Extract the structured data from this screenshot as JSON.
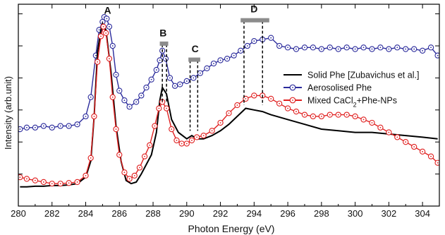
{
  "chart_data": {
    "type": "line",
    "xlabel": "Photon Energy (eV)",
    "ylabel": "Intensity (arb.unit)",
    "xlim": [
      280,
      305
    ],
    "ylim": [
      0,
      6.3
    ],
    "x_ticks": [
      "280",
      "282",
      "284",
      "286",
      "288",
      "290",
      "292",
      "294",
      "296",
      "298",
      "300",
      "302",
      "304"
    ],
    "x_tick_values": [
      280,
      282,
      284,
      286,
      288,
      290,
      292,
      294,
      296,
      298,
      300,
      302,
      304
    ],
    "y_tick_labels_shown": false,
    "legend_position": "right",
    "legend": {
      "items": [
        {
          "label": "Solid Phe [Zubavichus et al.]",
          "label_sub": "",
          "label_tail": "",
          "marker": "line",
          "color": "#000000"
        },
        {
          "label": "Aerosolised Phe",
          "label_sub": "",
          "label_tail": "",
          "marker": "circle",
          "color": "#2b2b9c"
        },
        {
          "label": "Mixed CaCl",
          "label_sub": "2",
          "label_tail": "+Phe-NPs",
          "marker": "circle",
          "color": "#e02020"
        }
      ]
    },
    "peak_labels": [
      {
        "label": "A",
        "x": 285.3,
        "y": 6.0
      },
      {
        "label": "B",
        "x": 288.6,
        "y": 5.3
      },
      {
        "label": "C",
        "x": 290.5,
        "y": 4.8
      },
      {
        "label": "D",
        "x": 294.0,
        "y": 6.05
      }
    ],
    "markers": {
      "dashed_lines": [
        {
          "x": 288.55,
          "y_top": 5.05,
          "y_bottom": 3.25
        },
        {
          "x": 288.8,
          "y_top": 5.05,
          "y_bottom": 3.25
        },
        {
          "x": 290.2,
          "y_top": 4.55,
          "y_bottom": 2.35
        },
        {
          "x": 290.65,
          "y_top": 4.55,
          "y_bottom": 2.35
        },
        {
          "x": 293.4,
          "y_top": 5.78,
          "y_bottom": 3.15
        },
        {
          "x": 294.5,
          "y_top": 5.78,
          "y_bottom": 3.15
        }
      ],
      "bars": [
        {
          "x1": 288.4,
          "x2": 288.9,
          "y": 5.07
        },
        {
          "x1": 290.1,
          "x2": 290.8,
          "y": 4.57
        },
        {
          "x1": 293.2,
          "x2": 294.9,
          "y": 5.8
        }
      ]
    },
    "series": [
      {
        "name": "Aerosolised Phe",
        "color": "#2b2b9c",
        "marker": "circle",
        "x": [
          280.1,
          280.5,
          281,
          281.5,
          282,
          282.5,
          283,
          283.5,
          284,
          284.3,
          284.6,
          284.8,
          285.0,
          285.1,
          285.25,
          285.4,
          285.6,
          285.8,
          286,
          286.3,
          286.6,
          287,
          287.3,
          287.6,
          287.9,
          288.2,
          288.4,
          288.55,
          288.75,
          289,
          289.3,
          289.6,
          290,
          290.4,
          290.8,
          291.2,
          291.6,
          292,
          292.4,
          292.8,
          293.2,
          293.6,
          294,
          294.5,
          295,
          295.5,
          296,
          296.5,
          297,
          297.5,
          298,
          298.5,
          299,
          299.5,
          300,
          300.5,
          301,
          301.5,
          302,
          302.5,
          303,
          303.5,
          304,
          304.5,
          304.9
        ],
        "y": [
          2.4,
          2.45,
          2.45,
          2.5,
          2.45,
          2.5,
          2.5,
          2.55,
          2.8,
          3.4,
          4.7,
          5.5,
          5.75,
          5.9,
          5.85,
          5.6,
          5.0,
          4.1,
          3.6,
          3.3,
          3.1,
          3.25,
          3.45,
          3.7,
          3.95,
          4.25,
          4.55,
          4.85,
          4.6,
          4.0,
          3.75,
          3.8,
          3.9,
          4.0,
          4.15,
          4.3,
          4.45,
          4.55,
          4.6,
          4.7,
          4.85,
          5.0,
          5.15,
          5.2,
          5.25,
          5.0,
          4.95,
          4.9,
          4.95,
          4.95,
          4.9,
          4.95,
          4.9,
          4.95,
          4.9,
          4.95,
          4.9,
          4.95,
          4.9,
          4.95,
          4.9,
          4.9,
          4.85,
          4.95,
          4.7
        ]
      },
      {
        "name": "Solid Phe [Zubavichus et al.]",
        "color": "#000000",
        "marker": "line",
        "x": [
          280.1,
          280.5,
          281,
          281.5,
          282,
          282.5,
          283,
          283.5,
          284,
          284.3,
          284.5,
          284.7,
          284.9,
          285.0,
          285.2,
          285.5,
          285.8,
          286.1,
          286.4,
          286.7,
          287,
          287.3,
          287.6,
          287.9,
          288.2,
          288.4,
          288.55,
          288.8,
          289.1,
          289.5,
          290,
          290.3,
          290.6,
          291,
          291.5,
          292,
          292.5,
          293,
          293.5,
          294,
          294.5,
          295,
          296,
          297,
          298,
          299,
          300,
          301,
          302,
          303,
          304,
          304.9
        ],
        "y": [
          0.6,
          0.6,
          0.62,
          0.62,
          0.64,
          0.64,
          0.66,
          0.7,
          0.9,
          1.4,
          2.8,
          4.8,
          5.5,
          5.7,
          5.5,
          4.2,
          2.5,
          1.4,
          0.8,
          0.7,
          0.75,
          1.0,
          1.3,
          1.6,
          2.3,
          3.3,
          3.7,
          3.5,
          2.7,
          2.3,
          2.1,
          2.2,
          2.1,
          2.1,
          2.2,
          2.35,
          2.55,
          2.8,
          3.05,
          3.0,
          2.95,
          2.85,
          2.7,
          2.55,
          2.4,
          2.35,
          2.3,
          2.3,
          2.25,
          2.2,
          2.15,
          2.1
        ]
      },
      {
        "name": "Mixed CaCl2+Phe-NPs",
        "color": "#e02020",
        "marker": "circle",
        "x": [
          280.1,
          280.5,
          281,
          281.5,
          282,
          282.5,
          283,
          283.5,
          284,
          284.3,
          284.5,
          284.7,
          284.9,
          285.05,
          285.2,
          285.4,
          285.6,
          285.8,
          286,
          286.3,
          286.6,
          286.9,
          287.2,
          287.5,
          287.8,
          288.1,
          288.35,
          288.55,
          288.8,
          289.1,
          289.4,
          289.7,
          290,
          290.3,
          290.6,
          291,
          291.5,
          292,
          292.5,
          293,
          293.5,
          294,
          294.5,
          295,
          295.5,
          296,
          296.5,
          297,
          297.5,
          298,
          298.5,
          299,
          299.5,
          300,
          300.5,
          301,
          301.5,
          302,
          302.5,
          303,
          303.5,
          304,
          304.5,
          304.9
        ],
        "y": [
          0.9,
          0.85,
          0.8,
          0.75,
          0.7,
          0.7,
          0.72,
          0.75,
          0.95,
          1.5,
          2.8,
          4.5,
          5.3,
          5.6,
          5.4,
          4.6,
          3.4,
          2.4,
          1.6,
          1.05,
          0.85,
          0.95,
          1.2,
          1.55,
          1.9,
          2.5,
          3.05,
          3.25,
          3.05,
          2.4,
          2.05,
          1.95,
          1.95,
          2.05,
          2.15,
          2.2,
          2.35,
          2.6,
          2.9,
          3.15,
          3.35,
          3.45,
          3.45,
          3.35,
          3.2,
          3.05,
          2.95,
          2.85,
          2.8,
          2.8,
          2.85,
          2.85,
          2.85,
          2.8,
          2.7,
          2.6,
          2.45,
          2.3,
          2.15,
          2.0,
          1.85,
          1.7,
          1.55,
          1.35
        ]
      }
    ]
  }
}
